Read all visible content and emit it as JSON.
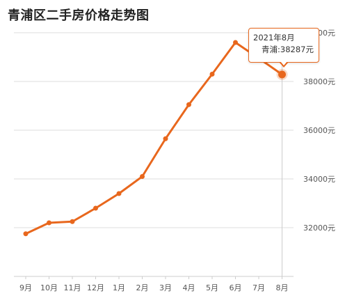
{
  "page": {
    "title": "青浦区二手房价格走势图"
  },
  "chart_data": {
    "type": "line",
    "title": "青浦区二手房价格走势图",
    "categories": [
      "9月",
      "10月",
      "11月",
      "12月",
      "1月",
      "2月",
      "3月",
      "4月",
      "5月",
      "6月",
      "7月",
      "8月"
    ],
    "series": [
      {
        "name": "青浦",
        "values": [
          31750,
          32200,
          32250,
          32800,
          33400,
          34100,
          35650,
          37050,
          38300,
          39600,
          38950,
          38287
        ]
      }
    ],
    "yticks": [
      {
        "value": 32000,
        "label": "32000元"
      },
      {
        "value": 34000,
        "label": "34000元"
      },
      {
        "value": 36000,
        "label": "36000元"
      },
      {
        "value": 38000,
        "label": "38000元"
      },
      {
        "value": 40000,
        "label": "40000元"
      }
    ],
    "ylim": [
      30000,
      41000
    ],
    "grid": true,
    "line_color": "#e8671d",
    "highlight_index": 11,
    "tooltip": {
      "date": "2021年8月",
      "series_name": "青浦",
      "value": "38287元",
      "text": "青浦:38287元"
    }
  }
}
